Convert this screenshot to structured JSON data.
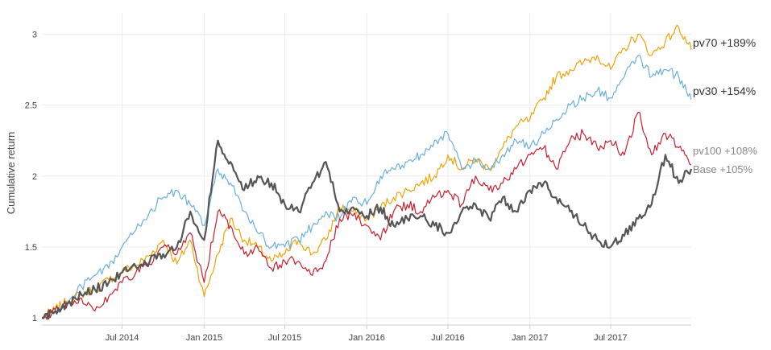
{
  "chart_data": {
    "type": "line",
    "title": "",
    "xlabel": "",
    "ylabel": "Cumulative return",
    "x_range": [
      "2014-01-02",
      "2017-12-29"
    ],
    "ylim": [
      0.95,
      3.15
    ],
    "y_ticks": [
      1,
      1.5,
      2,
      2.5,
      3
    ],
    "y_tick_labels": [
      "1",
      "1.5",
      "2",
      "2.5",
      "3"
    ],
    "x_ticks": [
      "2014-07-01",
      "2015-01-01",
      "2015-07-01",
      "2016-01-01",
      "2016-07-01",
      "2017-01-01",
      "2017-07-01"
    ],
    "x_tick_labels": [
      "Jul 2014",
      "Jan 2015",
      "Jul 2015",
      "Jan 2016",
      "Jul 2016",
      "Jan 2017",
      "Jul 2017"
    ],
    "grid": true,
    "series": [
      {
        "name": "pv70",
        "color": "#f0a30a",
        "stroke_width": 1.2,
        "end_label": "pv70 +189%",
        "end_label_color": "#333333",
        "points": [
          [
            "2014-01-02",
            1.0
          ],
          [
            "2014-02-01",
            1.06
          ],
          [
            "2014-03-01",
            1.12
          ],
          [
            "2014-04-01",
            1.17
          ],
          [
            "2014-05-01",
            1.2
          ],
          [
            "2014-06-01",
            1.27
          ],
          [
            "2014-07-01",
            1.33
          ],
          [
            "2014-08-01",
            1.37
          ],
          [
            "2014-09-01",
            1.44
          ],
          [
            "2014-10-01",
            1.55
          ],
          [
            "2014-11-01",
            1.38
          ],
          [
            "2014-12-01",
            1.55
          ],
          [
            "2015-01-01",
            1.15
          ],
          [
            "2015-02-01",
            1.45
          ],
          [
            "2015-03-01",
            1.7
          ],
          [
            "2015-04-01",
            1.55
          ],
          [
            "2015-05-01",
            1.5
          ],
          [
            "2015-06-01",
            1.4
          ],
          [
            "2015-07-01",
            1.45
          ],
          [
            "2015-08-01",
            1.55
          ],
          [
            "2015-09-01",
            1.45
          ],
          [
            "2015-10-01",
            1.55
          ],
          [
            "2015-11-01",
            1.78
          ],
          [
            "2015-12-01",
            1.75
          ],
          [
            "2016-01-01",
            1.7
          ],
          [
            "2016-02-01",
            1.78
          ],
          [
            "2016-03-01",
            1.85
          ],
          [
            "2016-04-01",
            1.9
          ],
          [
            "2016-05-01",
            1.95
          ],
          [
            "2016-06-01",
            2.0
          ],
          [
            "2016-07-01",
            2.15
          ],
          [
            "2016-08-01",
            2.05
          ],
          [
            "2016-09-01",
            2.12
          ],
          [
            "2016-10-01",
            2.05
          ],
          [
            "2016-11-01",
            2.2
          ],
          [
            "2016-12-01",
            2.35
          ],
          [
            "2017-01-01",
            2.4
          ],
          [
            "2017-02-01",
            2.55
          ],
          [
            "2017-03-01",
            2.7
          ],
          [
            "2017-04-01",
            2.75
          ],
          [
            "2017-05-01",
            2.8
          ],
          [
            "2017-06-01",
            2.85
          ],
          [
            "2017-07-01",
            2.75
          ],
          [
            "2017-08-01",
            2.9
          ],
          [
            "2017-09-01",
            3.0
          ],
          [
            "2017-10-01",
            2.85
          ],
          [
            "2017-11-01",
            2.95
          ],
          [
            "2017-12-01",
            3.05
          ],
          [
            "2017-12-29",
            2.89
          ]
        ]
      },
      {
        "name": "pv30",
        "color": "#6ab0de",
        "stroke_width": 1.2,
        "end_label": "pv30 +154%",
        "end_label_color": "#333333",
        "points": [
          [
            "2014-01-02",
            1.0
          ],
          [
            "2014-02-01",
            1.05
          ],
          [
            "2014-03-01",
            1.1
          ],
          [
            "2014-04-01",
            1.22
          ],
          [
            "2014-05-01",
            1.3
          ],
          [
            "2014-06-01",
            1.35
          ],
          [
            "2014-07-01",
            1.5
          ],
          [
            "2014-08-01",
            1.62
          ],
          [
            "2014-09-01",
            1.75
          ],
          [
            "2014-10-01",
            1.85
          ],
          [
            "2014-11-01",
            1.9
          ],
          [
            "2014-12-01",
            1.8
          ],
          [
            "2015-01-01",
            1.65
          ],
          [
            "2015-02-01",
            2.05
          ],
          [
            "2015-03-01",
            1.95
          ],
          [
            "2015-04-01",
            1.75
          ],
          [
            "2015-05-01",
            1.6
          ],
          [
            "2015-06-01",
            1.5
          ],
          [
            "2015-07-01",
            1.5
          ],
          [
            "2015-08-01",
            1.55
          ],
          [
            "2015-09-01",
            1.65
          ],
          [
            "2015-10-01",
            1.75
          ],
          [
            "2015-11-01",
            1.7
          ],
          [
            "2015-12-01",
            1.85
          ],
          [
            "2016-01-01",
            1.8
          ],
          [
            "2016-02-01",
            2.0
          ],
          [
            "2016-03-01",
            2.05
          ],
          [
            "2016-04-01",
            2.1
          ],
          [
            "2016-05-01",
            2.15
          ],
          [
            "2016-06-01",
            2.25
          ],
          [
            "2016-07-01",
            2.3
          ],
          [
            "2016-08-01",
            2.05
          ],
          [
            "2016-09-01",
            2.1
          ],
          [
            "2016-10-01",
            2.05
          ],
          [
            "2016-11-01",
            2.15
          ],
          [
            "2016-12-01",
            2.25
          ],
          [
            "2017-01-01",
            2.2
          ],
          [
            "2017-02-01",
            2.3
          ],
          [
            "2017-03-01",
            2.4
          ],
          [
            "2017-04-01",
            2.5
          ],
          [
            "2017-05-01",
            2.55
          ],
          [
            "2017-06-01",
            2.6
          ],
          [
            "2017-07-01",
            2.55
          ],
          [
            "2017-08-01",
            2.7
          ],
          [
            "2017-09-01",
            2.85
          ],
          [
            "2017-10-01",
            2.7
          ],
          [
            "2017-11-01",
            2.75
          ],
          [
            "2017-12-01",
            2.7
          ],
          [
            "2017-12-29",
            2.54
          ]
        ]
      },
      {
        "name": "pv100",
        "color": "#c8202f",
        "stroke_width": 1.2,
        "end_label": "pv100 +108%",
        "end_label_color": "#888888",
        "points": [
          [
            "2014-01-02",
            1.0
          ],
          [
            "2014-02-01",
            1.06
          ],
          [
            "2014-03-01",
            1.1
          ],
          [
            "2014-04-01",
            1.14
          ],
          [
            "2014-05-01",
            1.05
          ],
          [
            "2014-06-01",
            1.15
          ],
          [
            "2014-07-01",
            1.25
          ],
          [
            "2014-08-01",
            1.32
          ],
          [
            "2014-09-01",
            1.38
          ],
          [
            "2014-10-01",
            1.5
          ],
          [
            "2014-11-01",
            1.45
          ],
          [
            "2014-12-01",
            1.6
          ],
          [
            "2015-01-01",
            1.25
          ],
          [
            "2015-02-01",
            1.75
          ],
          [
            "2015-03-01",
            1.65
          ],
          [
            "2015-04-01",
            1.45
          ],
          [
            "2015-05-01",
            1.5
          ],
          [
            "2015-06-01",
            1.35
          ],
          [
            "2015-07-01",
            1.4
          ],
          [
            "2015-08-01",
            1.4
          ],
          [
            "2015-09-01",
            1.3
          ],
          [
            "2015-10-01",
            1.4
          ],
          [
            "2015-11-01",
            1.7
          ],
          [
            "2015-12-01",
            1.72
          ],
          [
            "2016-01-01",
            1.65
          ],
          [
            "2016-02-01",
            1.55
          ],
          [
            "2016-03-01",
            1.75
          ],
          [
            "2016-04-01",
            1.8
          ],
          [
            "2016-05-01",
            1.75
          ],
          [
            "2016-06-01",
            1.85
          ],
          [
            "2016-07-01",
            1.9
          ],
          [
            "2016-08-01",
            1.8
          ],
          [
            "2016-09-01",
            2.0
          ],
          [
            "2016-10-01",
            1.9
          ],
          [
            "2016-11-01",
            1.95
          ],
          [
            "2016-12-01",
            2.05
          ],
          [
            "2017-01-01",
            2.15
          ],
          [
            "2017-02-01",
            2.2
          ],
          [
            "2017-03-01",
            2.05
          ],
          [
            "2017-04-01",
            2.25
          ],
          [
            "2017-05-01",
            2.3
          ],
          [
            "2017-06-01",
            2.2
          ],
          [
            "2017-07-01",
            2.25
          ],
          [
            "2017-08-01",
            2.15
          ],
          [
            "2017-09-01",
            2.45
          ],
          [
            "2017-10-01",
            2.15
          ],
          [
            "2017-11-01",
            2.3
          ],
          [
            "2017-12-01",
            2.2
          ],
          [
            "2017-12-29",
            2.08
          ]
        ]
      },
      {
        "name": "Base",
        "color": "#555555",
        "stroke_width": 2.2,
        "end_label": "Base    +105%",
        "end_label_color": "#888888",
        "points": [
          [
            "2014-01-02",
            1.0
          ],
          [
            "2014-02-01",
            1.05
          ],
          [
            "2014-03-01",
            1.1
          ],
          [
            "2014-04-01",
            1.16
          ],
          [
            "2014-05-01",
            1.2
          ],
          [
            "2014-06-01",
            1.25
          ],
          [
            "2014-07-01",
            1.32
          ],
          [
            "2014-08-01",
            1.36
          ],
          [
            "2014-09-01",
            1.4
          ],
          [
            "2014-10-01",
            1.45
          ],
          [
            "2014-11-01",
            1.5
          ],
          [
            "2014-12-01",
            1.75
          ],
          [
            "2015-01-01",
            1.55
          ],
          [
            "2015-02-01",
            2.25
          ],
          [
            "2015-03-01",
            2.1
          ],
          [
            "2015-04-01",
            1.9
          ],
          [
            "2015-05-01",
            2.0
          ],
          [
            "2015-06-01",
            1.95
          ],
          [
            "2015-07-01",
            1.8
          ],
          [
            "2015-08-01",
            1.75
          ],
          [
            "2015-09-01",
            1.95
          ],
          [
            "2015-10-01",
            2.1
          ],
          [
            "2015-11-01",
            1.75
          ],
          [
            "2015-12-01",
            1.78
          ],
          [
            "2016-01-01",
            1.72
          ],
          [
            "2016-02-01",
            1.78
          ],
          [
            "2016-03-01",
            1.65
          ],
          [
            "2016-04-01",
            1.7
          ],
          [
            "2016-05-01",
            1.72
          ],
          [
            "2016-06-01",
            1.65
          ],
          [
            "2016-07-01",
            1.6
          ],
          [
            "2016-08-01",
            1.75
          ],
          [
            "2016-09-01",
            1.8
          ],
          [
            "2016-10-01",
            1.7
          ],
          [
            "2016-11-01",
            1.85
          ],
          [
            "2016-12-01",
            1.75
          ],
          [
            "2017-01-01",
            1.9
          ],
          [
            "2017-02-01",
            1.95
          ],
          [
            "2017-03-01",
            1.85
          ],
          [
            "2017-04-01",
            1.75
          ],
          [
            "2017-05-01",
            1.65
          ],
          [
            "2017-06-01",
            1.55
          ],
          [
            "2017-07-01",
            1.5
          ],
          [
            "2017-08-01",
            1.58
          ],
          [
            "2017-09-01",
            1.7
          ],
          [
            "2017-10-01",
            1.8
          ],
          [
            "2017-11-01",
            2.15
          ],
          [
            "2017-12-01",
            1.95
          ],
          [
            "2017-12-29",
            2.05
          ]
        ]
      }
    ]
  }
}
